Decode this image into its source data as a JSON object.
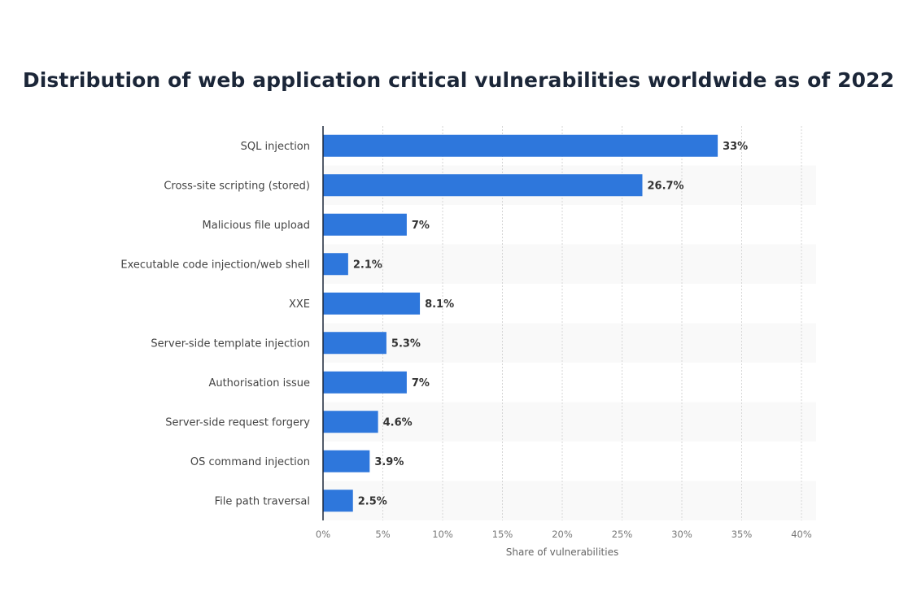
{
  "chart_data": {
    "type": "bar",
    "orientation": "horizontal",
    "title": "Distribution of web application critical vulnerabilities worldwide as of 2022",
    "xlabel": "Share of vulnerabilities",
    "ylabel": "",
    "categories": [
      "SQL injection",
      "Cross-site scripting (stored)",
      "Malicious file upload",
      "Executable code injection/web shell",
      "XXE",
      "Server-side template injection",
      "Authorisation issue",
      "Server-side request forgery",
      "OS command injection",
      "File path traversal"
    ],
    "values": [
      33,
      26.7,
      7,
      2.1,
      8.1,
      5.3,
      7,
      4.6,
      3.9,
      2.5
    ],
    "value_labels": [
      "33%",
      "26.7%",
      "7%",
      "2.1%",
      "8.1%",
      "5.3%",
      "7%",
      "4.6%",
      "3.9%",
      "2.5%"
    ],
    "xlim": [
      0,
      40
    ],
    "xticks": [
      "0%",
      "5%",
      "10%",
      "15%",
      "20%",
      "25%",
      "30%",
      "35%",
      "40%"
    ],
    "grid": "vertical dotted",
    "legend": "none",
    "colors": {
      "bar": "#2e77dc",
      "stripe": "#f9f9f9",
      "axis": "#1b2638"
    }
  }
}
